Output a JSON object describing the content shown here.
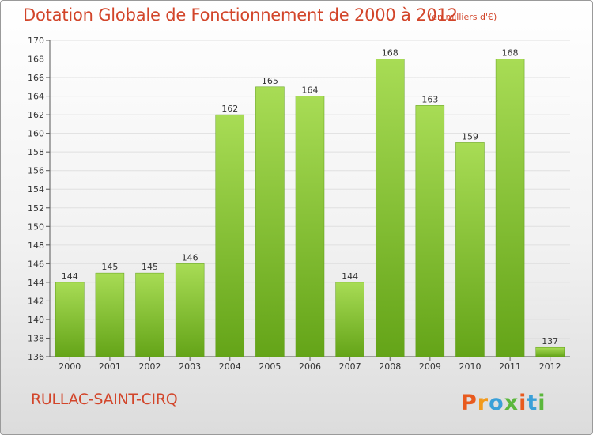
{
  "header": {
    "title": "Dotation Globale de Fonctionnement de 2000 à 2012",
    "unit_note": "(en milliers d'€)"
  },
  "footer": {
    "commune": "RULLAC-SAINT-CIRQ",
    "brand": "Proxiti"
  },
  "colors": {
    "title": "#d2452a",
    "bar_light": "#a8dc55",
    "bar_dark": "#64a418",
    "grid": "#e0e0e0"
  },
  "chart_data": {
    "type": "bar",
    "title": "Dotation Globale de Fonctionnement de 2000 à 2012",
    "subtitle": "(en milliers d'€)",
    "xlabel": "",
    "ylabel": "",
    "categories": [
      "2000",
      "2001",
      "2002",
      "2003",
      "2004",
      "2005",
      "2006",
      "2007",
      "2008",
      "2009",
      "2010",
      "2011",
      "2012"
    ],
    "values": [
      144,
      145,
      145,
      146,
      162,
      165,
      164,
      144,
      168,
      163,
      159,
      168,
      137
    ],
    "ylim": [
      136,
      170
    ],
    "yticks": [
      136,
      138,
      140,
      142,
      144,
      146,
      148,
      150,
      152,
      154,
      156,
      158,
      160,
      162,
      164,
      166,
      168,
      170
    ],
    "grid": true,
    "legend": "none"
  }
}
